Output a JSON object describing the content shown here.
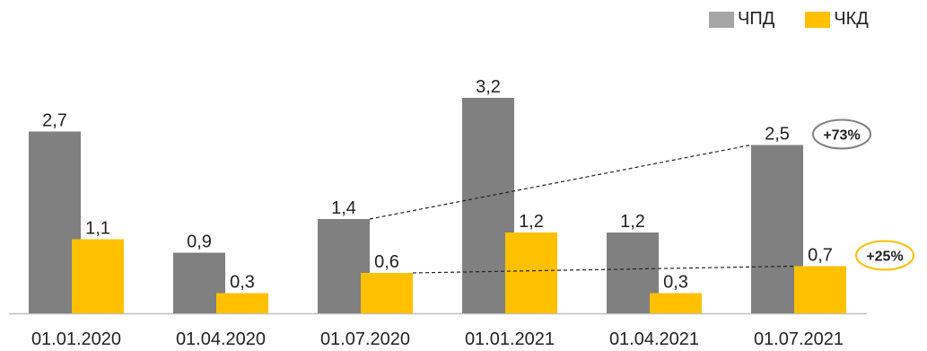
{
  "chart_data": {
    "type": "bar",
    "categories": [
      "01.01.2020",
      "01.04.2020",
      "01.07.2020",
      "01.01.2021",
      "01.04.2021",
      "01.07.2021"
    ],
    "series": [
      {
        "name": "ЧПД",
        "values": [
          2.7,
          0.9,
          1.4,
          3.2,
          1.2,
          2.5
        ],
        "labels": [
          "2,7",
          "0,9",
          "1,4",
          "3,2",
          "1,2",
          "2,5"
        ],
        "color": "#808080"
      },
      {
        "name": "ЧКД",
        "values": [
          1.1,
          0.3,
          0.6,
          1.2,
          0.3,
          0.7
        ],
        "labels": [
          "1,1",
          "0,3",
          "0,6",
          "1,2",
          "0,3",
          "0,7"
        ],
        "color": "#FFC000"
      }
    ],
    "annotations": [
      {
        "series": 0,
        "from_category": 2,
        "to_category": 5,
        "text": "+73%",
        "ring_color": "#808080"
      },
      {
        "series": 1,
        "from_category": 2,
        "to_category": 5,
        "text": "+25%",
        "ring_color": "#FFC000"
      }
    ],
    "title": "",
    "xlabel": "",
    "ylabel": "",
    "ylim": [
      0,
      3.5
    ],
    "grid": false,
    "legend_position": "top-right"
  }
}
